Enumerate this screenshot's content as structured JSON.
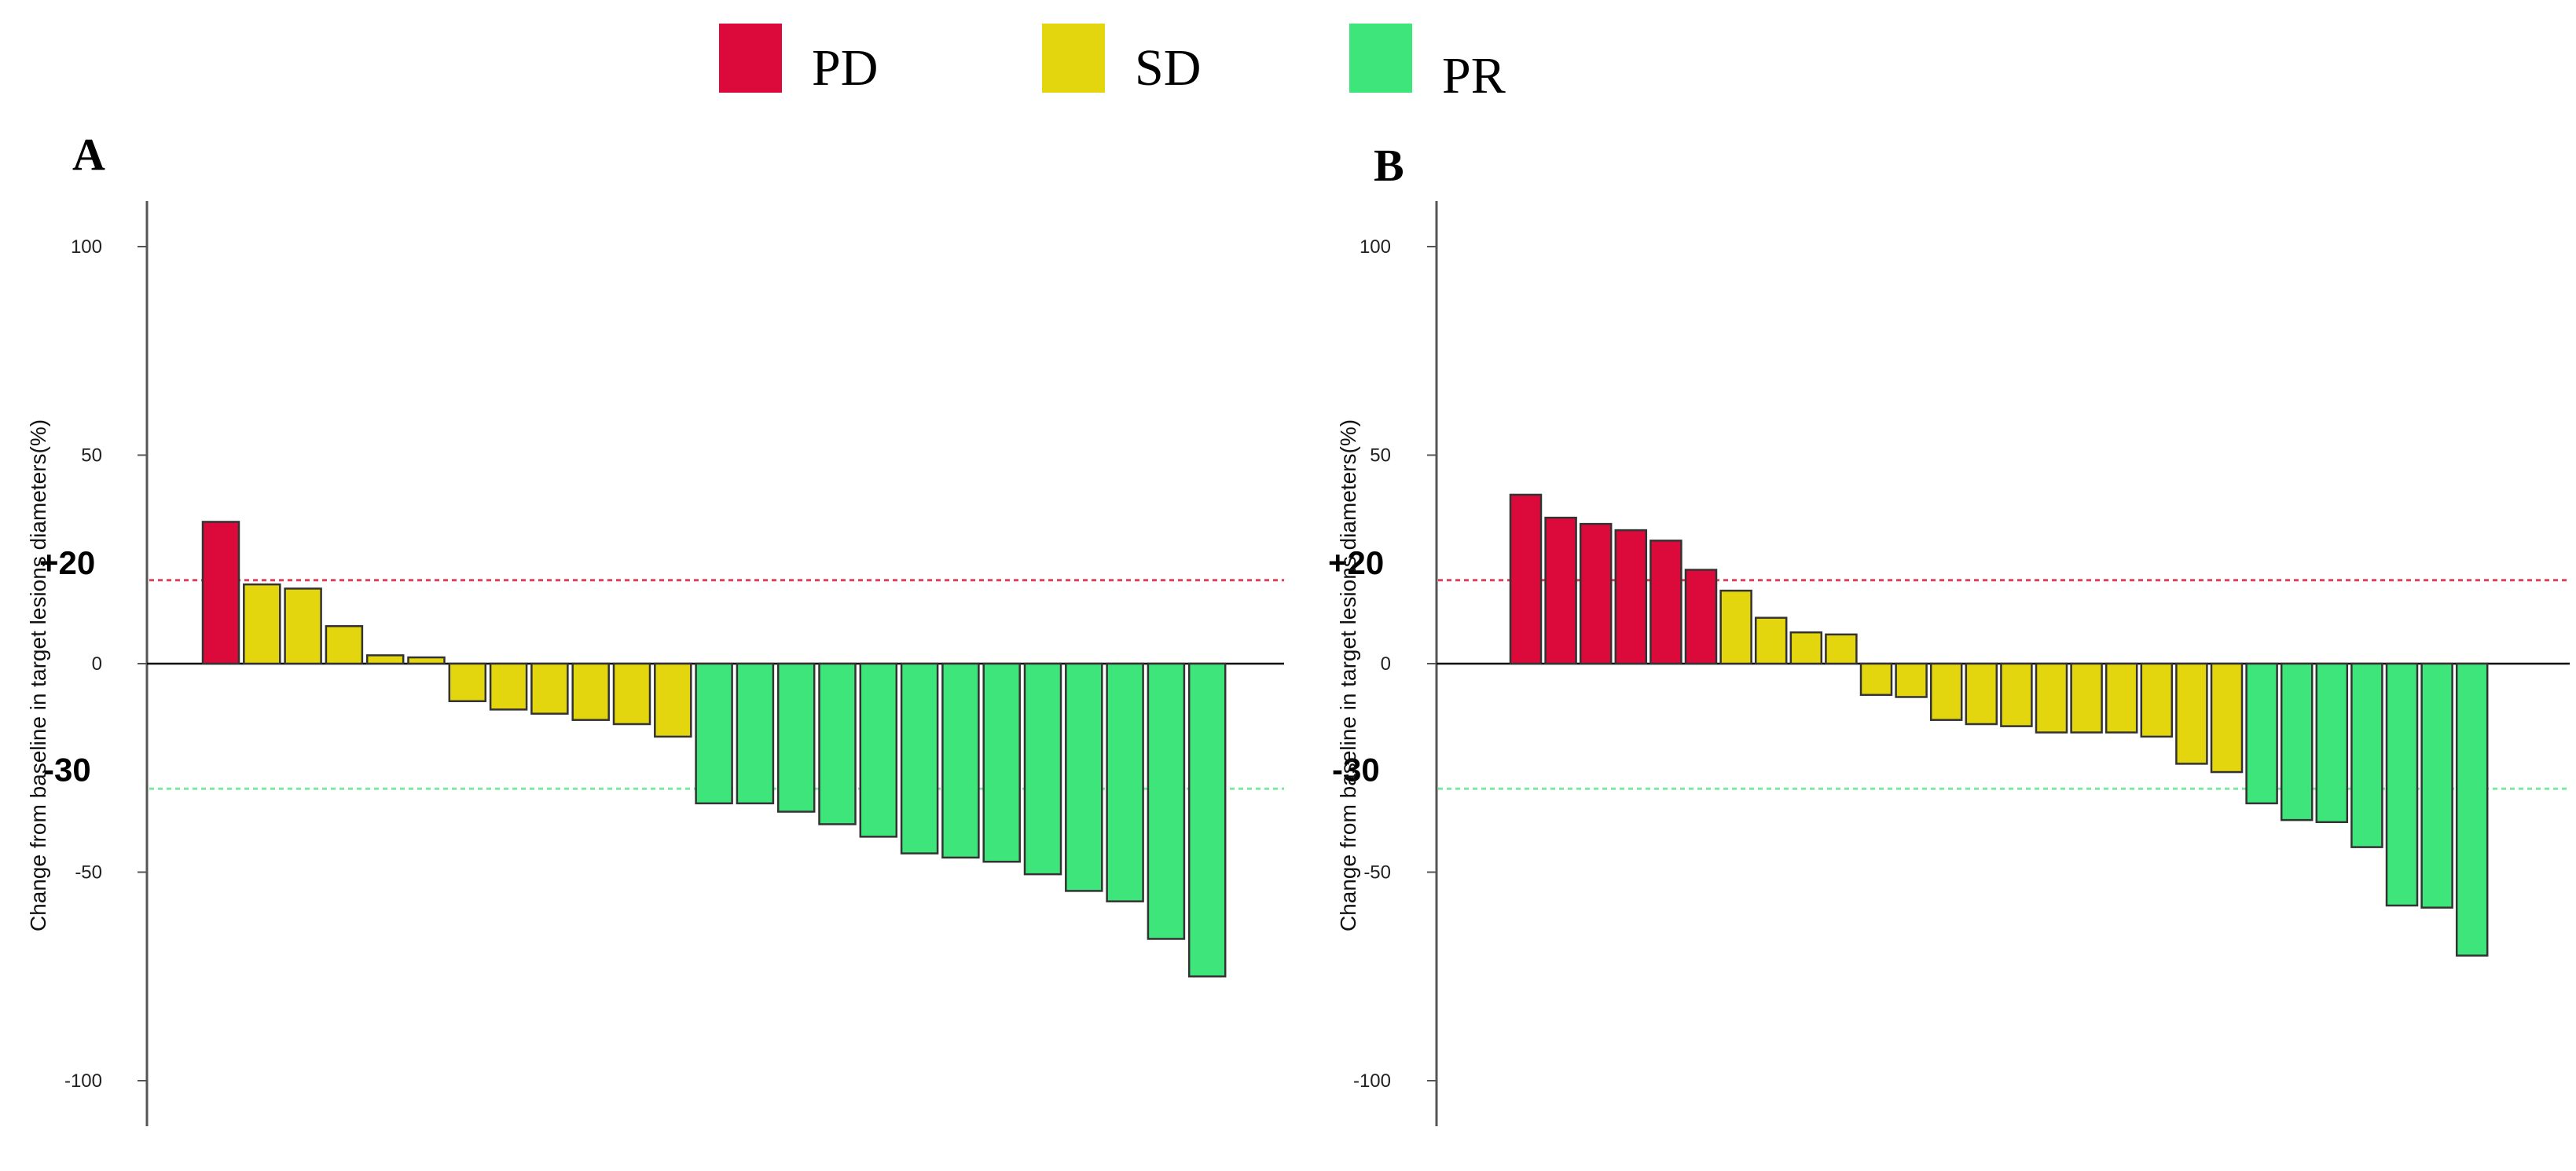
{
  "legend": {
    "items": [
      {
        "label": "PD",
        "color": "#DC0A3A"
      },
      {
        "label": "SD",
        "color": "#E3D50E"
      },
      {
        "label": "PR",
        "color": "#3EE57B"
      }
    ]
  },
  "panels": [
    {
      "letter": "A"
    },
    {
      "letter": "B"
    }
  ],
  "chart_data": [
    {
      "type": "bar",
      "panel": "A",
      "ylabel": "Change from baseline in target lesions diameters(%)",
      "ylim": [
        -110,
        110
      ],
      "yticks": [
        100,
        50,
        0,
        -50,
        -100
      ],
      "reference_lines": [
        {
          "value": 20,
          "label": "+20",
          "color": "#E0405A"
        },
        {
          "value": -30,
          "label": "-30",
          "color": "#7CE8A0"
        }
      ],
      "bars": [
        {
          "value": 34,
          "group": "PD"
        },
        {
          "value": 19,
          "group": "SD"
        },
        {
          "value": 18,
          "group": "SD"
        },
        {
          "value": 9,
          "group": "SD"
        },
        {
          "value": 2,
          "group": "SD"
        },
        {
          "value": 1.5,
          "group": "SD"
        },
        {
          "value": -9,
          "group": "SD"
        },
        {
          "value": -11,
          "group": "SD"
        },
        {
          "value": -12,
          "group": "SD"
        },
        {
          "value": -13.5,
          "group": "SD"
        },
        {
          "value": -14.5,
          "group": "SD"
        },
        {
          "value": -17.5,
          "group": "SD"
        },
        {
          "value": -33.5,
          "group": "PR"
        },
        {
          "value": -33.5,
          "group": "PR"
        },
        {
          "value": -35.5,
          "group": "PR"
        },
        {
          "value": -38.5,
          "group": "PR"
        },
        {
          "value": -41.5,
          "group": "PR"
        },
        {
          "value": -45.5,
          "group": "PR"
        },
        {
          "value": -46.5,
          "group": "PR"
        },
        {
          "value": -47.5,
          "group": "PR"
        },
        {
          "value": -50.5,
          "group": "PR"
        },
        {
          "value": -54.5,
          "group": "PR"
        },
        {
          "value": -57,
          "group": "PR"
        },
        {
          "value": -66,
          "group": "PR"
        },
        {
          "value": -75,
          "group": "PR"
        }
      ]
    },
    {
      "type": "bar",
      "panel": "B",
      "ylabel": "Change from baseline in target lesions diameters(%)",
      "ylim": [
        -110,
        110
      ],
      "yticks": [
        100,
        50,
        0,
        -50,
        -100
      ],
      "reference_lines": [
        {
          "value": 20,
          "label": "+20",
          "color": "#E0405A"
        },
        {
          "value": -30,
          "label": "-30",
          "color": "#7CE8A0"
        }
      ],
      "bars": [
        {
          "value": 40.5,
          "group": "PD"
        },
        {
          "value": 35,
          "group": "PD"
        },
        {
          "value": 33.5,
          "group": "PD"
        },
        {
          "value": 32,
          "group": "PD"
        },
        {
          "value": 29.5,
          "group": "PD"
        },
        {
          "value": 22.5,
          "group": "PD"
        },
        {
          "value": 17.5,
          "group": "SD"
        },
        {
          "value": 11,
          "group": "SD"
        },
        {
          "value": 7.5,
          "group": "SD"
        },
        {
          "value": 7,
          "group": "SD"
        },
        {
          "value": -7.5,
          "group": "SD"
        },
        {
          "value": -8,
          "group": "SD"
        },
        {
          "value": -13.5,
          "group": "SD"
        },
        {
          "value": -14.5,
          "group": "SD"
        },
        {
          "value": -15,
          "group": "SD"
        },
        {
          "value": -16.5,
          "group": "SD"
        },
        {
          "value": -16.5,
          "group": "SD"
        },
        {
          "value": -16.5,
          "group": "SD"
        },
        {
          "value": -17.5,
          "group": "SD"
        },
        {
          "value": -24,
          "group": "SD"
        },
        {
          "value": -26,
          "group": "SD"
        },
        {
          "value": -33.5,
          "group": "PR"
        },
        {
          "value": -37.5,
          "group": "PR"
        },
        {
          "value": -38,
          "group": "PR"
        },
        {
          "value": -44,
          "group": "PR"
        },
        {
          "value": -58,
          "group": "PR"
        },
        {
          "value": -58.5,
          "group": "PR"
        },
        {
          "value": -70,
          "group": "PR"
        }
      ]
    }
  ]
}
